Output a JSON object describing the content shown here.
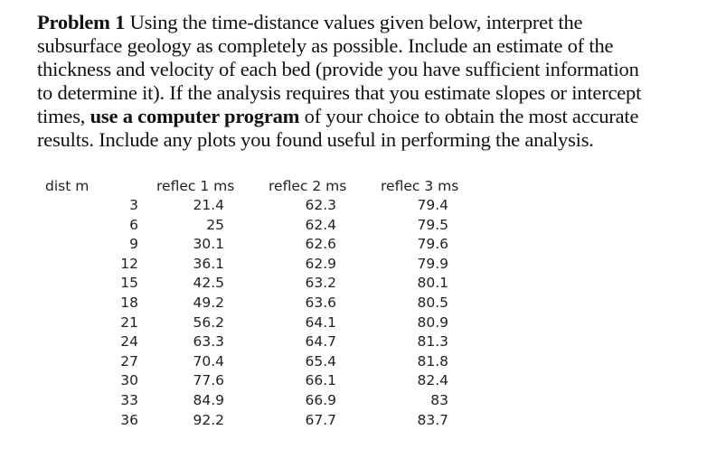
{
  "problem": {
    "title": "Problem 1",
    "lines": [
      " Using the time-distance values given below, interpret the",
      "subsurface geology as completely as possible.  Include an estimate of the",
      "thickness and velocity of each bed (provide you have sufficient information",
      "to determine it).  If the analysis requires that you estimate slopes or intercept",
      "times, ",
      " of your choice to obtain the most accurate",
      "results.  Include any plots you found useful in performing the analysis."
    ],
    "emphasis": "use a computer program"
  },
  "table": {
    "headers": [
      "dist m",
      "reflec 1 ms",
      "reflec 2 ms",
      "reflec 3 ms"
    ],
    "rows": [
      [
        "3",
        "21.4",
        "62.3",
        "79.4"
      ],
      [
        "6",
        "25",
        "62.4",
        "79.5"
      ],
      [
        "9",
        "30.1",
        "62.6",
        "79.6"
      ],
      [
        "12",
        "36.1",
        "62.9",
        "79.9"
      ],
      [
        "15",
        "42.5",
        "63.2",
        "80.1"
      ],
      [
        "18",
        "49.2",
        "63.6",
        "80.5"
      ],
      [
        "21",
        "56.2",
        "64.1",
        "80.9"
      ],
      [
        "24",
        "63.3",
        "64.7",
        "81.3"
      ],
      [
        "27",
        "70.4",
        "65.4",
        "81.8"
      ],
      [
        "30",
        "77.6",
        "66.1",
        "82.4"
      ],
      [
        "33",
        "84.9",
        "66.9",
        "83"
      ],
      [
        "36",
        "92.2",
        "67.7",
        "83.7"
      ]
    ]
  }
}
